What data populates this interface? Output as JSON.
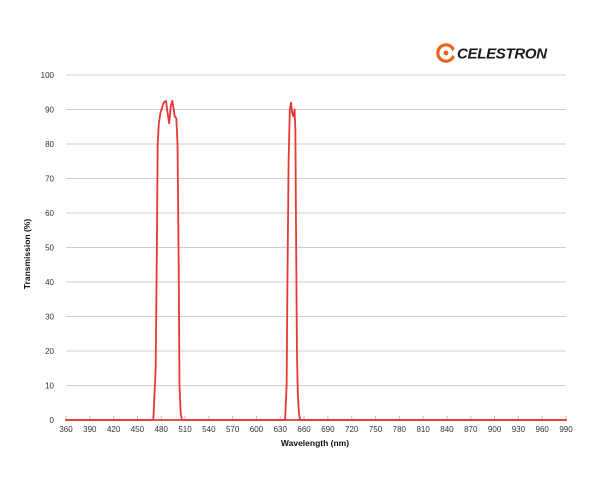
{
  "logo": {
    "text": "CELESTRON",
    "color": "#e8641c"
  },
  "chart_data": {
    "type": "line",
    "title": "",
    "xlabel": "Wavelength (nm)",
    "ylabel": "Transmission (%)",
    "xlim": [
      360,
      990
    ],
    "ylim": [
      0,
      100
    ],
    "x_ticks": [
      360,
      390,
      420,
      450,
      480,
      510,
      540,
      570,
      600,
      630,
      660,
      690,
      720,
      750,
      780,
      810,
      840,
      870,
      900,
      930,
      960,
      990
    ],
    "y_ticks": [
      0,
      10,
      20,
      30,
      40,
      50,
      60,
      70,
      80,
      90,
      100
    ],
    "grid": {
      "horizontal": true,
      "vertical": false
    },
    "line_color": "#e53935",
    "grid_color": "#cfcfcf",
    "series": [
      {
        "x": [
          360,
          470,
          473,
          474.5,
          475.5,
          477,
          479,
          483,
          486,
          488,
          490,
          492,
          494,
          497,
          499,
          500.5,
          502,
          503,
          504.5,
          506,
          990
        ],
        "y": [
          0,
          0,
          15,
          50,
          80,
          86,
          89,
          92,
          92.5,
          89,
          86,
          91,
          92.5,
          88,
          87.5,
          80,
          45,
          10,
          2,
          0,
          0
        ]
      },
      {
        "x": [
          360,
          636,
          638,
          639,
          640.5,
          642,
          643.5,
          645,
          646.5,
          648,
          649,
          650,
          651,
          652,
          653.5,
          655,
          990
        ],
        "y": [
          0,
          0,
          10,
          40,
          75,
          90,
          92,
          89,
          88,
          90,
          84,
          50,
          20,
          8,
          2,
          0,
          0
        ]
      }
    ]
  }
}
